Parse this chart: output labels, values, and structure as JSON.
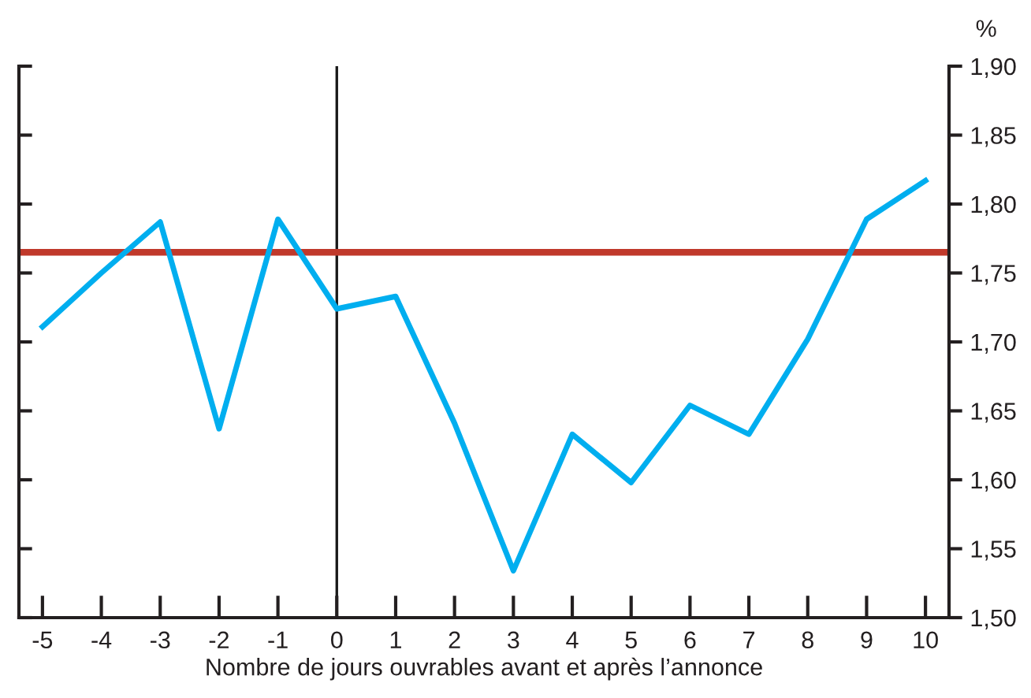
{
  "chart_data": {
    "type": "line",
    "xlabel": "Nombre de jours ouvrables avant et après l’annonce",
    "ylabel": "%",
    "x": [
      -5,
      -4,
      -3,
      -2,
      -1,
      0,
      1,
      2,
      3,
      4,
      5,
      6,
      7,
      8,
      9,
      10
    ],
    "series": [
      {
        "color": "#00aeef",
        "values": [
          1.711,
          1.75,
          1.787,
          1.637,
          1.789,
          1.724,
          1.733,
          1.641,
          1.534,
          1.633,
          1.598,
          1.654,
          1.633,
          1.702,
          1.789,
          1.817
        ]
      }
    ],
    "ref_lines": [
      {
        "axis": "y",
        "value": 1.765,
        "color": "#c0392b"
      },
      {
        "axis": "x",
        "value": 0,
        "color": "#1a1a1a"
      }
    ],
    "xlim": [
      -5.4,
      10.4
    ],
    "xticks": [
      -5,
      -4,
      -3,
      -2,
      -1,
      0,
      1,
      2,
      3,
      4,
      5,
      6,
      7,
      8,
      9,
      10
    ],
    "ylim": [
      1.5,
      1.9
    ],
    "yticks": [
      {
        "value": 1.5,
        "label": "1,50"
      },
      {
        "value": 1.55,
        "label": "1,55"
      },
      {
        "value": 1.6,
        "label": "1,60"
      },
      {
        "value": 1.65,
        "label": "1,65"
      },
      {
        "value": 1.7,
        "label": "1,70"
      },
      {
        "value": 1.75,
        "label": "1,75"
      },
      {
        "value": 1.8,
        "label": "1,80"
      },
      {
        "value": 1.85,
        "label": "1,85"
      },
      {
        "value": 1.9,
        "label": "1,90"
      }
    ],
    "grid": false,
    "marker": "none",
    "line_style": "solid"
  }
}
